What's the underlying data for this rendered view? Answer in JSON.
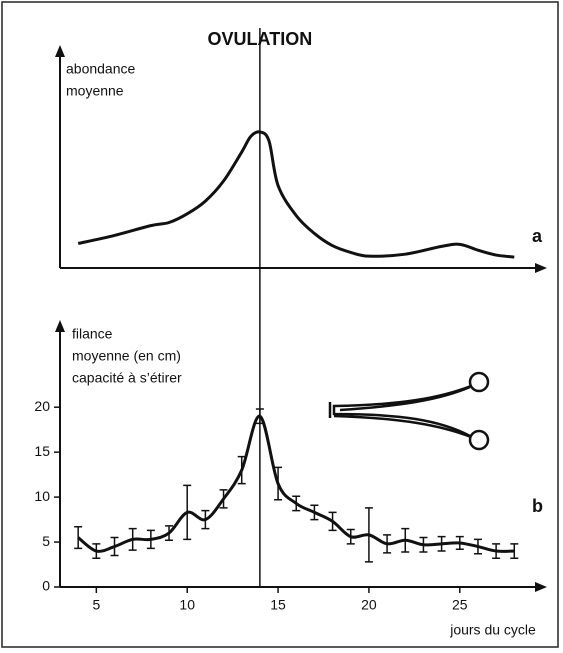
{
  "chart_data": [
    {
      "type": "line",
      "annotation": {
        "text": "OVULATION",
        "x": 14
      },
      "ylabel": [
        "abondance",
        "moyenne"
      ],
      "panel_label": "a",
      "x": [
        4,
        6,
        8,
        9,
        10,
        11,
        12,
        13,
        13.5,
        14,
        14.5,
        15,
        16,
        17,
        18,
        19,
        20,
        22,
        24,
        25,
        26,
        27,
        28
      ],
      "values": [
        11,
        14.6,
        19,
        20.4,
        24.3,
        30,
        39,
        52,
        59,
        61,
        57,
        37,
        23.5,
        15.5,
        10,
        7,
        5.3,
        6.2,
        9.7,
        10.6,
        8,
        5.8,
        4.9
      ],
      "color": "#111111",
      "xlim": [
        3,
        29.8
      ],
      "ylim": [
        0,
        100
      ]
    },
    {
      "type": "errorbar",
      "ylabel": [
        "filance",
        "moyenne (en cm)",
        "capacité à s’étirer"
      ],
      "panel_label": "b",
      "xlabel": "jours du cycle",
      "x": [
        4,
        5,
        6,
        7,
        8,
        9,
        10,
        11,
        12,
        13,
        14,
        15,
        16,
        17,
        18,
        19,
        20,
        21,
        22,
        23,
        24,
        25,
        26,
        27,
        28
      ],
      "values": [
        5.5,
        4,
        4.5,
        5.3,
        5.3,
        6,
        8.3,
        7.5,
        9.8,
        13,
        19,
        11.5,
        9.3,
        8.3,
        7.3,
        5.6,
        5.8,
        4.8,
        5.2,
        4.7,
        4.8,
        4.9,
        4.5,
        4,
        4
      ],
      "errors": [
        1.2,
        0.8,
        1,
        1.2,
        1,
        0.8,
        3,
        1,
        1,
        1.5,
        0.8,
        1.8,
        0.8,
        0.8,
        1,
        0.8,
        3,
        1,
        1.3,
        0.8,
        0.8,
        0.7,
        0.8,
        0.8,
        0.8
      ],
      "color": "#111111",
      "xlim": [
        3,
        29.8
      ],
      "ylim": [
        0,
        29.7
      ],
      "xticks": [
        5,
        10,
        15,
        20,
        25
      ],
      "yticks": [
        0,
        5,
        10,
        15,
        20
      ]
    }
  ]
}
